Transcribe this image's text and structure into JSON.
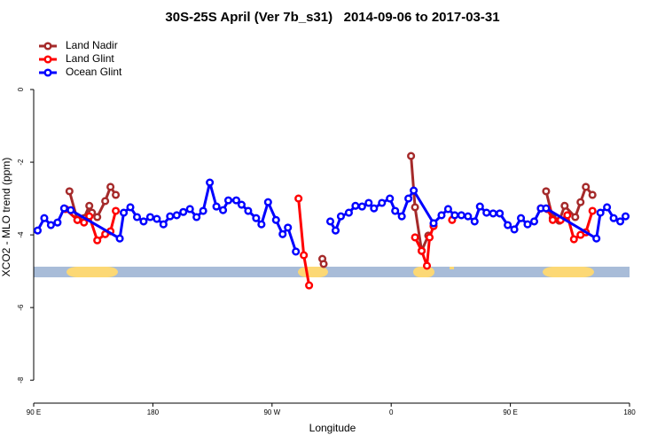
{
  "chart_data": {
    "type": "line",
    "title": "30S-25S April (Ver 7b_s31)   2014-09-06 to 2017-03-31",
    "x_label": "Longitude",
    "y_label": "XCO2 - MLO trend (ppm)",
    "xlim": [
      90,
      540
    ],
    "ylim": [
      -8.63,
      1.61
    ],
    "xticks": [
      {
        "value": 90,
        "label": "90 E"
      },
      {
        "value": 180,
        "label": "180"
      },
      {
        "value": 270,
        "label": "90 W"
      },
      {
        "value": 360,
        "label": "0"
      },
      {
        "value": 450,
        "label": "90 E"
      },
      {
        "value": 540,
        "label": "180"
      }
    ],
    "yticks": [
      0,
      -2,
      -4,
      -6,
      -8
    ],
    "legend": "topleft",
    "series": [
      {
        "name": "Land Nadir",
        "color": "#a52a2a",
        "x": [
          117,
          123,
          128,
          132,
          134,
          138,
          144,
          148,
          152,
          250,
          308,
          309,
          400,
          375,
          378,
          383,
          388,
          500,
          477,
          482,
          487,
          491,
          499,
          503,
          507,
          512
        ],
        "values": [
          -2.8,
          -3.59,
          -3.54,
          -3.2,
          -3.39,
          -3.51,
          -3.07,
          -2.68,
          -2.9,
          null,
          -4.66,
          -4.8,
          null,
          -1.83,
          -3.24,
          -4.44,
          -4.02,
          null,
          -2.8,
          -3.54,
          -3.61,
          -3.2,
          -3.51,
          -3.1,
          -2.68,
          -2.9
        ]
      },
      {
        "name": "Land Glint",
        "color": "#ff0000",
        "x": [
          114,
          123,
          128,
          132,
          138,
          144,
          148,
          152,
          250,
          290,
          294,
          298,
          350,
          378,
          383,
          387,
          389,
          392,
          395,
          406,
          440,
          473,
          478,
          482,
          488,
          493,
          498,
          503,
          507,
          512
        ],
        "values": [
          -3.29,
          -3.59,
          -3.66,
          -3.49,
          -4.15,
          -3.98,
          -3.9,
          -3.34,
          null,
          -3.0,
          -4.56,
          -5.39,
          null,
          -4.07,
          -4.44,
          -4.85,
          -4.07,
          -3.76,
          null,
          -3.59,
          null,
          -3.27,
          -3.29,
          -3.59,
          -3.59,
          -3.46,
          -4.12,
          -4.0,
          -3.93,
          -3.34
        ]
      },
      {
        "name": "Ocean Glint",
        "color": "#0000ff",
        "x": [
          93,
          98,
          103,
          108,
          113,
          118,
          155,
          158,
          163,
          168,
          173,
          178,
          183,
          188,
          193,
          198,
          203,
          208,
          213,
          218,
          223,
          228,
          233,
          237,
          243,
          247,
          252,
          258,
          262,
          267,
          273,
          278,
          282,
          288,
          300,
          314,
          318,
          322,
          328,
          333,
          338,
          343,
          347,
          353,
          359,
          363,
          368,
          373,
          377,
          392,
          398,
          403,
          408,
          413,
          418,
          423,
          427,
          432,
          437,
          442,
          448,
          453,
          458,
          463,
          468,
          473,
          477,
          515,
          518,
          523,
          528,
          533,
          537
        ],
        "values": [
          -3.88,
          -3.54,
          -3.73,
          -3.66,
          -3.27,
          -3.32,
          -4.1,
          -3.39,
          -3.24,
          -3.51,
          -3.63,
          -3.51,
          -3.56,
          -3.71,
          -3.49,
          -3.46,
          -3.37,
          -3.29,
          -3.51,
          -3.34,
          -2.56,
          -3.22,
          -3.32,
          -3.05,
          -3.05,
          -3.17,
          -3.34,
          -3.54,
          -3.71,
          -3.1,
          -3.59,
          -3.98,
          -3.8,
          -4.46,
          null,
          -3.63,
          -3.88,
          -3.49,
          -3.39,
          -3.2,
          -3.22,
          -3.12,
          -3.27,
          -3.12,
          -3.0,
          -3.34,
          -3.49,
          -3.0,
          -2.78,
          -3.68,
          -3.46,
          -3.29,
          -3.46,
          -3.46,
          -3.49,
          -3.63,
          -3.22,
          -3.39,
          -3.41,
          -3.41,
          -3.73,
          -3.85,
          -3.54,
          -3.71,
          -3.63,
          -3.27,
          -3.27,
          -4.1,
          -3.39,
          -3.24,
          -3.54,
          -3.63,
          -3.49
        ]
      }
    ]
  }
}
